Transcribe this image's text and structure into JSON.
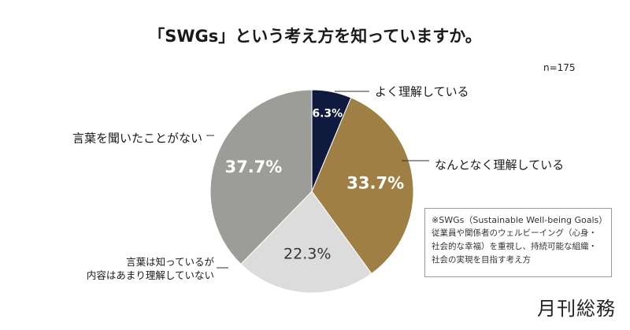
{
  "title": "「SWGs」という考え方を知っていますか。",
  "sample": "n=175",
  "chart_data": {
    "type": "pie",
    "title": "「SWGs」という考え方を知っていますか。",
    "categories": [
      "よく理解している",
      "なんとなく理解している",
      "言葉は知っているが内容はあまり理解していない",
      "言葉を聞いたことがない"
    ],
    "values": [
      6.3,
      33.7,
      22.3,
      37.7
    ],
    "value_labels": [
      "6.3%",
      "33.7%",
      "22.3%",
      "37.7%"
    ],
    "colors": [
      "#101a3e",
      "#9f7f44",
      "#dcdcdc",
      "#9c9d98"
    ],
    "label_lines": [
      [
        "よく理解している"
      ],
      [
        "なんとなく理解している"
      ],
      [
        "言葉は知っているが",
        "内容はあまり理解していない"
      ],
      [
        "言葉を聞いたことがない"
      ]
    ]
  },
  "note": {
    "title": "※SWGs（Sustainable Well-being Goals）",
    "lines": [
      "従業員や関係者のウェルビーイング（心身・",
      "社会的な幸福）を重視し、持続可能な組織・",
      "社会の実現を目指す考え方"
    ]
  },
  "logo": "月刊総務"
}
